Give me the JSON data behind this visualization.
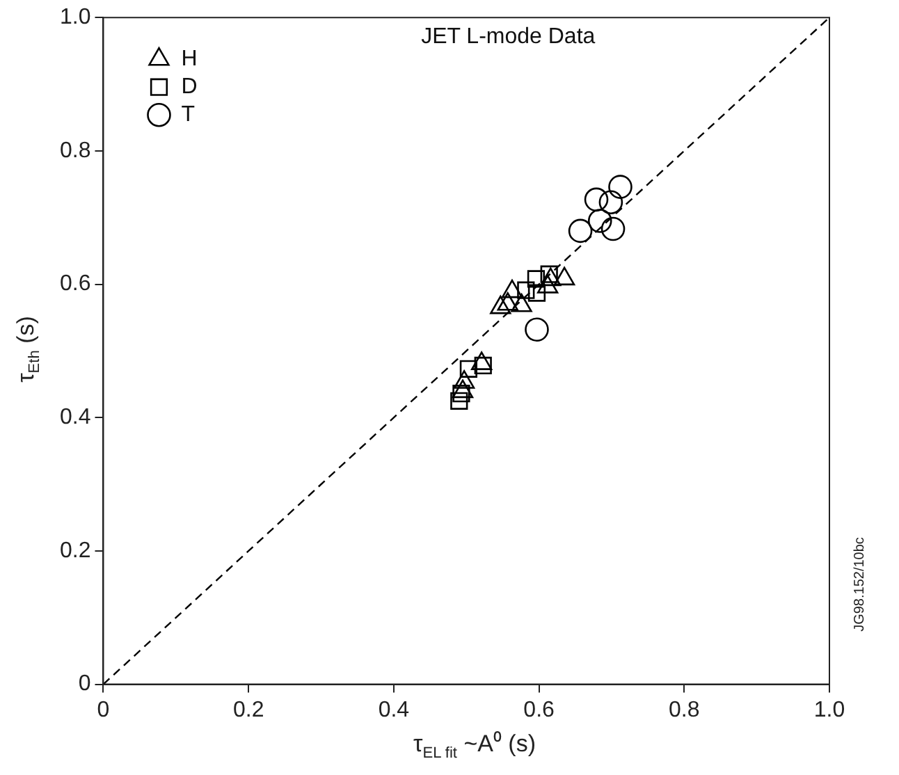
{
  "chart_data": {
    "type": "scatter",
    "title": "JET L-mode Data",
    "xlabel": "τ$_{EL fit}$ ~A⁰ (s)",
    "ylabel": "τ$_{Eth}$ (s)",
    "xlim": [
      0,
      1
    ],
    "ylim": [
      0,
      1
    ],
    "xticks": [
      0,
      0.2,
      0.4,
      0.6,
      0.8,
      {
        "value": 1,
        "label": "1.0"
      }
    ],
    "yticks": [
      0,
      0.2,
      0.4,
      0.6,
      0.8,
      {
        "value": 1,
        "label": "1.0"
      }
    ],
    "grid": false,
    "legend": "top left",
    "annotations": [
      "JG98.152/10bc"
    ],
    "series": [
      {
        "name": "H",
        "color": "#000000",
        "marker": "triangle",
        "x": [
          0.635,
          0.616,
          0.612,
          0.563,
          0.547,
          0.557,
          0.576,
          0.521,
          0.497,
          0.495
        ],
        "values": [
          0.608,
          0.607,
          0.596,
          0.589,
          0.565,
          0.57,
          0.568,
          0.481,
          0.453,
          0.439
        ]
      },
      {
        "name": "D",
        "color": "#000000",
        "marker": "square",
        "x": [
          0.614,
          0.596,
          0.582,
          0.597,
          0.503,
          0.523,
          0.49,
          0.493
        ],
        "values": [
          0.615,
          0.608,
          0.591,
          0.587,
          0.473,
          0.478,
          0.425,
          0.436
        ]
      },
      {
        "name": "T",
        "color": "#000000",
        "marker": "circle",
        "x": [
          0.712,
          0.679,
          0.699,
          0.684,
          0.657,
          0.702,
          0.597
        ],
        "values": [
          0.746,
          0.727,
          0.723,
          0.695,
          0.68,
          0.683,
          0.532
        ]
      },
      {
        "type": "line",
        "color": "#000000",
        "marker": "none",
        "line_style": "dashed",
        "x": [
          0,
          1
        ],
        "values": [
          0,
          1
        ]
      }
    ]
  }
}
